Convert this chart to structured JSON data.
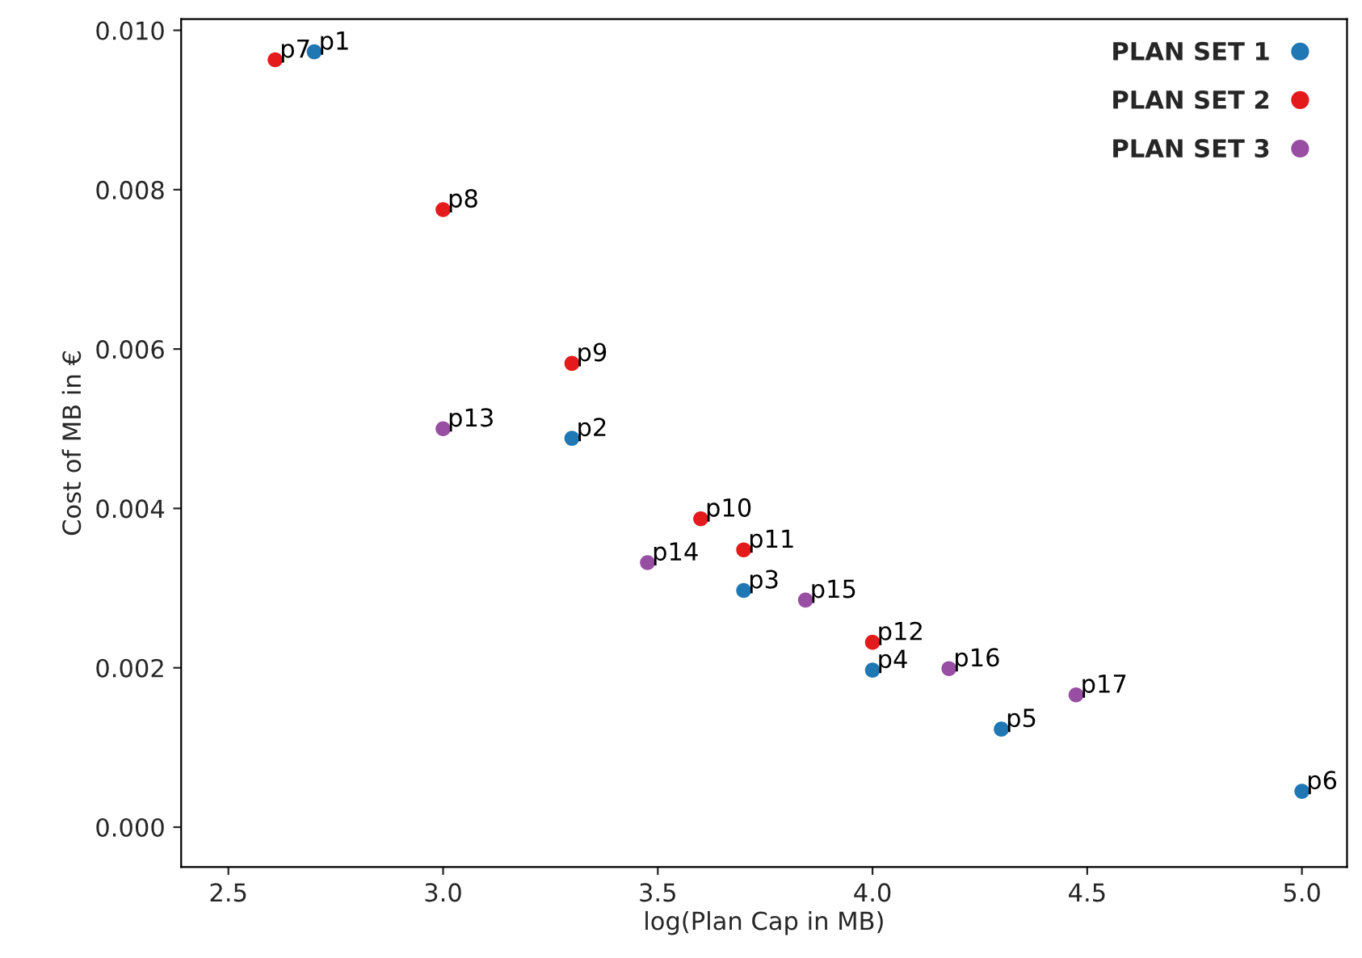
{
  "chart_data": {
    "type": "scatter",
    "xlabel": "log(Plan Cap in MB)",
    "ylabel": "Cost of MB in €",
    "xlim": [
      2.39,
      5.105
    ],
    "ylim": [
      -0.0005,
      0.01014
    ],
    "xticks": [
      {
        "value": 2.5,
        "label": "2.5"
      },
      {
        "value": 3.0,
        "label": "3.0"
      },
      {
        "value": 3.5,
        "label": "3.5"
      },
      {
        "value": 4.0,
        "label": "4.0"
      },
      {
        "value": 4.5,
        "label": "4.5"
      },
      {
        "value": 5.0,
        "label": "5.0"
      }
    ],
    "yticks": [
      {
        "value": 0.0,
        "label": "0.000"
      },
      {
        "value": 0.002,
        "label": "0.002"
      },
      {
        "value": 0.004,
        "label": "0.004"
      },
      {
        "value": 0.006,
        "label": "0.006"
      },
      {
        "value": 0.008,
        "label": "0.008"
      },
      {
        "value": 0.01,
        "label": "0.010"
      }
    ],
    "grid": false,
    "legend": "top right",
    "marker": "circle",
    "series": [
      {
        "name": "PLAN SET 1",
        "color": "#1f77b4",
        "x": [
          2.7,
          3.3,
          3.7,
          4.0,
          4.3,
          5.0
        ],
        "values": [
          0.00973,
          0.00488,
          0.00297,
          0.00197,
          0.00123,
          0.00045
        ]
      },
      {
        "name": "PLAN SET 2",
        "color": "#e41a1c",
        "x": [
          2.609,
          3.0,
          3.3,
          3.6,
          3.7,
          4.0
        ],
        "values": [
          0.00963,
          0.00775,
          0.00582,
          0.00387,
          0.00348,
          0.00232
        ]
      },
      {
        "name": "PLAN SET 3",
        "color": "#984ea3",
        "x": [
          3.0,
          3.476,
          3.844,
          4.178,
          4.474
        ],
        "values": [
          0.005,
          0.00332,
          0.00285,
          0.00199,
          0.00166
        ]
      }
    ],
    "annotations": [
      {
        "text": "p1",
        "x": 2.7,
        "y": 0.00973
      },
      {
        "text": "p2",
        "x": 3.3,
        "y": 0.00488
      },
      {
        "text": "p3",
        "x": 3.7,
        "y": 0.00297
      },
      {
        "text": "p4",
        "x": 4.0,
        "y": 0.00197
      },
      {
        "text": "p5",
        "x": 4.3,
        "y": 0.00123
      },
      {
        "text": "p6",
        "x": 5.0,
        "y": 0.00045
      },
      {
        "text": "p7",
        "x": 2.609,
        "y": 0.00963
      },
      {
        "text": "p8",
        "x": 3.0,
        "y": 0.00775
      },
      {
        "text": "p9",
        "x": 3.3,
        "y": 0.00582
      },
      {
        "text": "p10",
        "x": 3.6,
        "y": 0.00387
      },
      {
        "text": "p11",
        "x": 3.7,
        "y": 0.00348
      },
      {
        "text": "p12",
        "x": 4.0,
        "y": 0.00232
      },
      {
        "text": "p13",
        "x": 3.0,
        "y": 0.005
      },
      {
        "text": "p14",
        "x": 3.476,
        "y": 0.00332
      },
      {
        "text": "p15",
        "x": 3.844,
        "y": 0.00285
      },
      {
        "text": "p16",
        "x": 4.178,
        "y": 0.00199
      },
      {
        "text": "p17",
        "x": 4.474,
        "y": 0.00166
      }
    ]
  }
}
